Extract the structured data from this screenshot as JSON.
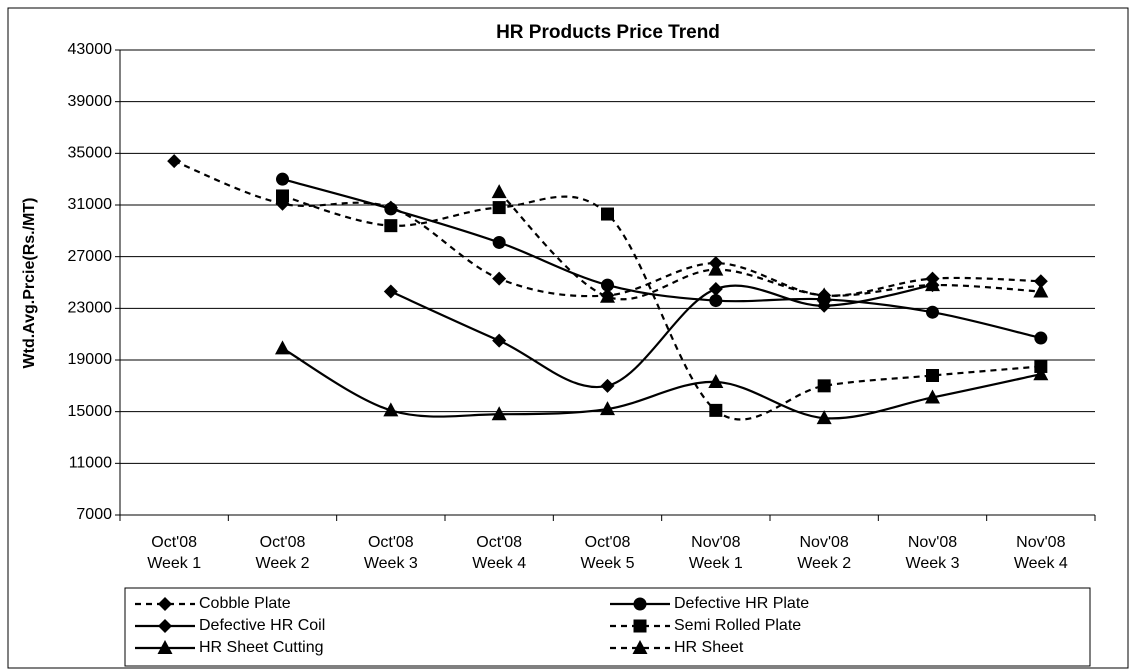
{
  "chart_data": {
    "type": "line",
    "title": "HR Products Price Trend",
    "y_label": "Wtd.Avg.Prcie(Rs./MT)",
    "categories": [
      [
        "Oct'08",
        "Week 1"
      ],
      [
        "Oct'08",
        "Week 2"
      ],
      [
        "Oct'08",
        "Week 3"
      ],
      [
        "Oct'08",
        "Week 4"
      ],
      [
        "Oct'08",
        "Week 5"
      ],
      [
        "Nov'08",
        "Week 1"
      ],
      [
        "Nov'08",
        "Week 2"
      ],
      [
        "Nov'08",
        "Week 3"
      ],
      [
        "Nov'08",
        "Week 4"
      ]
    ],
    "ylim": [
      7000,
      43000
    ],
    "yticks": [
      7000,
      11000,
      15000,
      19000,
      23000,
      27000,
      31000,
      35000,
      39000,
      43000
    ],
    "grid": true,
    "legend": "bottom",
    "series": [
      {
        "name": "Cobble Plate",
        "color": "#000000",
        "dash": true,
        "marker": "diamond",
        "values": [
          34400,
          31100,
          30800,
          25300,
          24000,
          26500,
          24000,
          25300,
          25100
        ]
      },
      {
        "name": "Defective HR Plate",
        "color": "#000000",
        "dash": false,
        "marker": "circle",
        "values": [
          null,
          33000,
          30700,
          28100,
          24800,
          23600,
          23700,
          22700,
          20700
        ]
      },
      {
        "name": "Defective HR Coil",
        "color": "#000000",
        "dash": false,
        "marker": "diamond",
        "values": [
          null,
          null,
          24300,
          20500,
          17000,
          24500,
          23200,
          24800,
          null
        ]
      },
      {
        "name": "Semi Rolled Plate",
        "color": "#000000",
        "dash": true,
        "marker": "square",
        "values": [
          null,
          31700,
          29400,
          30800,
          30300,
          15100,
          17000,
          17800,
          18500
        ]
      },
      {
        "name": "HR Sheet Cutting",
        "color": "#000000",
        "dash": false,
        "marker": "triangle",
        "values": [
          null,
          19900,
          15100,
          14800,
          15200,
          17300,
          14500,
          16100,
          17900
        ]
      },
      {
        "name": "HR Sheet",
        "color": "#000000",
        "dash": true,
        "marker": "triangle",
        "values": [
          null,
          null,
          null,
          32000,
          23900,
          26000,
          24000,
          24800,
          24300
        ]
      }
    ]
  }
}
